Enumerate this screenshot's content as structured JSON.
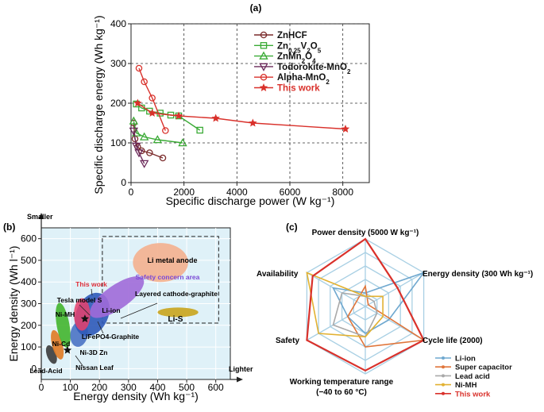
{
  "chart_data": [
    {
      "panel": "(a)",
      "type": "line",
      "xlabel": "Specific discharge power (W kg⁻¹)",
      "ylabel": "Specific discharge energy (Wh kg⁻¹)",
      "xlim": [
        0,
        9000
      ],
      "ylim": [
        0,
        400
      ],
      "xticks": [
        "0",
        "2000",
        "4000",
        "6000",
        "8000"
      ],
      "yticks": [
        "0",
        "100",
        "200",
        "300",
        "400"
      ],
      "grid": true,
      "legend_position": "top-right",
      "series": [
        {
          "name": "ZnHCF",
          "color": "#7a2a2a",
          "marker": "circle-open",
          "points": [
            [
              100,
              150
            ],
            [
              150,
              110
            ],
            [
              250,
              90
            ],
            [
              400,
              80
            ],
            [
              700,
              75
            ],
            [
              1200,
              62
            ]
          ]
        },
        {
          "name": "Zn0.25V2O5",
          "name_rich": [
            "Zn",
            "0.25",
            "V",
            "2",
            "O",
            "5"
          ],
          "color": "#3aaa35",
          "marker": "square-open",
          "points": [
            [
              200,
              198
            ],
            [
              400,
              188
            ],
            [
              700,
              180
            ],
            [
              1100,
              175
            ],
            [
              1500,
              170
            ],
            [
              1800,
              168
            ],
            [
              2600,
              132
            ]
          ]
        },
        {
          "name": "ZnMn2O4",
          "name_rich": [
            "ZnMn",
            "2",
            "O",
            "4"
          ],
          "color": "#3aaa35",
          "marker": "triangle-open",
          "points": [
            [
              100,
              155
            ],
            [
              200,
              125
            ],
            [
              500,
              115
            ],
            [
              1000,
              108
            ],
            [
              1950,
              100
            ]
          ]
        },
        {
          "name": "Todorokite-MnO2",
          "name_rich": [
            "Todorokite-MnO",
            "2"
          ],
          "color": "#6b2a5a",
          "marker": "triangle-down-open",
          "points": [
            [
              100,
              130
            ],
            [
              200,
              92
            ],
            [
              300,
              75
            ],
            [
              500,
              48
            ]
          ]
        },
        {
          "name": "Alpha-MnO2",
          "name_rich": [
            "Alpha-MnO",
            "2"
          ],
          "color": "#d9312b",
          "marker": "circle-open",
          "points": [
            [
              300,
              288
            ],
            [
              500,
              254
            ],
            [
              800,
              213
            ],
            [
              1300,
              131
            ]
          ]
        },
        {
          "name": "This work",
          "color": "#d9312b",
          "marker": "star",
          "bold": true,
          "points": [
            [
              250,
              200
            ],
            [
              800,
              175
            ],
            [
              1800,
              168
            ],
            [
              3200,
              162
            ],
            [
              4600,
              150
            ],
            [
              8100,
              135
            ]
          ]
        }
      ]
    },
    {
      "panel": "(b)",
      "type": "area",
      "xlabel": "Energy density (Wh kg⁻¹)",
      "ylabel": "Energy density (Wh l⁻¹)",
      "xlim": [
        0,
        650
      ],
      "ylim": [
        -50,
        650
      ],
      "xticks": [
        "0",
        "100",
        "200",
        "300",
        "400",
        "500",
        "600"
      ],
      "yticks": [
        "0",
        "100",
        "200",
        "300",
        "400",
        "500",
        "600"
      ],
      "grid": true,
      "corner_labels": {
        "top": "Smaller",
        "right": "Lighter"
      },
      "regions": [
        {
          "name": "Lead-Acid",
          "color": "#3b3b3b",
          "center": [
            35,
            65
          ],
          "rx": 16,
          "ry": 45,
          "angle": -20
        },
        {
          "name": "Ni-Cd",
          "color": "#e07a24",
          "center": [
            55,
            110
          ],
          "rx": 18,
          "ry": 70,
          "angle": -15
        },
        {
          "name": "Ni-MH",
          "color": "#43b52e",
          "center": [
            75,
            200
          ],
          "rx": 22,
          "ry": 105,
          "angle": -10
        },
        {
          "name": "LiFePO4-Graphite",
          "color": "#4b73c4",
          "center": [
            130,
            160
          ],
          "rx": 30,
          "ry": 60,
          "angle": 10
        },
        {
          "name": "Li-ion",
          "color": "#2e59b8",
          "center": [
            175,
            250
          ],
          "rx": 55,
          "ry": 105,
          "angle": 25
        },
        {
          "name": "Layered cathode-graphite",
          "color": "#a06ad8",
          "center": [
            260,
            330
          ],
          "rx": 110,
          "ry": 55,
          "angle": -35
        },
        {
          "name": "Li metal anode",
          "color": "#f4b08e",
          "center": [
            410,
            490
          ],
          "rx": 95,
          "ry": 90,
          "angle": 0
        },
        {
          "name": "Li-S",
          "color": "#c9a41c",
          "center": [
            470,
            260
          ],
          "rx": 70,
          "ry": 22,
          "angle": 0
        },
        {
          "name": "This work",
          "color": "#e8416b",
          "center": [
            140,
            250
          ],
          "rx": 28,
          "ry": 75,
          "angle": 0
        }
      ],
      "safety_box": {
        "label": "Safety concern area",
        "x": [
          210,
          610
        ],
        "y": [
          210,
          610
        ]
      },
      "points": [
        {
          "name": "Tesla model S",
          "x": 150,
          "y": 230
        },
        {
          "name": "Ni-3D Zn",
          "x": 90,
          "y": 85
        },
        {
          "name": "Nissan Leaf",
          "x": 80,
          "y": 85
        }
      ],
      "labels": [
        "Li metal anode",
        "Safety concern area",
        "Layered cathode-graphite",
        "Li-S",
        "This work",
        "Tesla model S",
        "Ni-MH",
        "Li-ion",
        "LiFePO4-Graphite",
        "Ni-Cd",
        "Ni-3D Zn",
        "Nissan Leaf",
        "Lead-Acid"
      ]
    },
    {
      "panel": "(c)",
      "type": "radar",
      "axes": [
        "Power density (5000 W kg⁻¹)",
        "Energy density (300 Wh kg⁻¹)",
        "Cycle life (2000)",
        "Working temperature range (−40 to 60 °C)",
        "Safety",
        "Availability"
      ],
      "axis_label_lines": [
        [
          "Power density (5000 W kg⁻¹)"
        ],
        [
          "Energy density (300 Wh kg⁻¹)"
        ],
        [
          "Cycle life (2000)"
        ],
        [
          "Working temperature range",
          "(−40 to 60 °C)"
        ],
        [
          "Safety"
        ],
        [
          "Availability"
        ]
      ],
      "levels": 5,
      "series": [
        {
          "name": "Li-ion",
          "color": "#6fa8cf",
          "values": [
            0.2,
            1.0,
            0.4,
            0.4,
            0.3,
            0.55
          ]
        },
        {
          "name": "Super capacitor",
          "color": "#e0753a",
          "values": [
            0.3,
            0.05,
            1.0,
            0.6,
            0.3,
            0.15
          ]
        },
        {
          "name": "Lead acid",
          "color": "#a9a9a9",
          "values": [
            0.15,
            0.15,
            0.2,
            0.45,
            0.55,
            0.4
          ]
        },
        {
          "name": "Ni-MH",
          "color": "#e2b131",
          "values": [
            0.15,
            0.3,
            0.3,
            0.45,
            0.8,
            1.0
          ]
        },
        {
          "name": "This work",
          "color": "#d9312b",
          "values": [
            1.0,
            0.55,
            1.0,
            0.95,
            1.0,
            0.9
          ]
        }
      ]
    }
  ]
}
